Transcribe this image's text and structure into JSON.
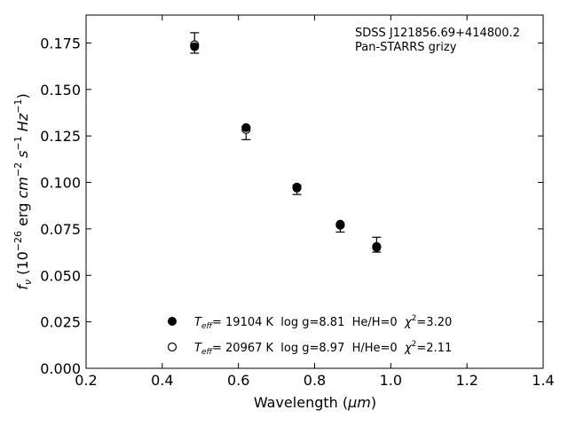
{
  "chart_data": {
    "type": "scatter",
    "xlim": [
      0.2,
      1.4
    ],
    "ylim": [
      0.0,
      0.19
    ],
    "x_ticks": [
      0.2,
      0.4,
      0.6,
      0.8,
      1.0,
      1.2,
      1.4
    ],
    "x_tick_labels": [
      "0.2",
      "0.4",
      "0.6",
      "0.8",
      "1.0",
      "1.2",
      "1.4"
    ],
    "y_ticks": [
      0.0,
      0.025,
      0.05,
      0.075,
      0.1,
      0.125,
      0.15,
      0.175
    ],
    "y_tick_labels": [
      "0.000",
      "0.025",
      "0.050",
      "0.075",
      "0.100",
      "0.125",
      "0.150",
      "0.175"
    ],
    "xlabel": {
      "main": "Wavelength (",
      "unit": "μm",
      "close": ")"
    },
    "ylabel": {
      "var": "f",
      "sub": "ν",
      "pre": " (10",
      "exp": "−26",
      "post": " erg ",
      "cm": "cm",
      "cmexp": "−2",
      "s": " s",
      "sexp": "−1",
      "hz": " Hz",
      "hzexp": "−1",
      "close": ")"
    },
    "annotations": [
      "SDSS J121856.69+414800.2",
      "Pan-STARRS grizy"
    ],
    "grid": false,
    "observed": {
      "x": [
        0.4849,
        0.6201,
        0.7535,
        0.8674,
        0.9628
      ],
      "y": [
        0.175,
        0.1265,
        0.096,
        0.0755,
        0.0665
      ],
      "yerr": [
        0.0055,
        0.0035,
        0.0025,
        0.0022,
        0.004
      ]
    },
    "series": [
      {
        "name": "He/H=0 model",
        "marker": "filled-circle",
        "x": [
          0.4849,
          0.6201,
          0.7535,
          0.8674,
          0.9628
        ],
        "y": [
          0.173,
          0.1295,
          0.0975,
          0.0775,
          0.065
        ],
        "legend": {
          "teff_label": "T",
          "teff_sub": "eff",
          "text": "= 19104 K  log g=8.81  He/H=0  ",
          "chi": "χ",
          "chi_exp": "2",
          "chi_val": "=3.20"
        }
      },
      {
        "name": "H/He=0 model",
        "marker": "open-circle",
        "x": [
          0.4849,
          0.6201,
          0.7535,
          0.8674,
          0.9628
        ],
        "y": [
          0.174,
          0.1285,
          0.097,
          0.077,
          0.0655
        ],
        "legend": {
          "teff_label": "T",
          "teff_sub": "eff",
          "text": "= 20967 K  log g=8.97  H/He=0  ",
          "chi": "χ",
          "chi_exp": "2",
          "chi_val": "=2.11"
        }
      }
    ],
    "colors": {
      "marker": "#000000",
      "open_fill": "#ffffff",
      "axis": "#000000"
    }
  }
}
